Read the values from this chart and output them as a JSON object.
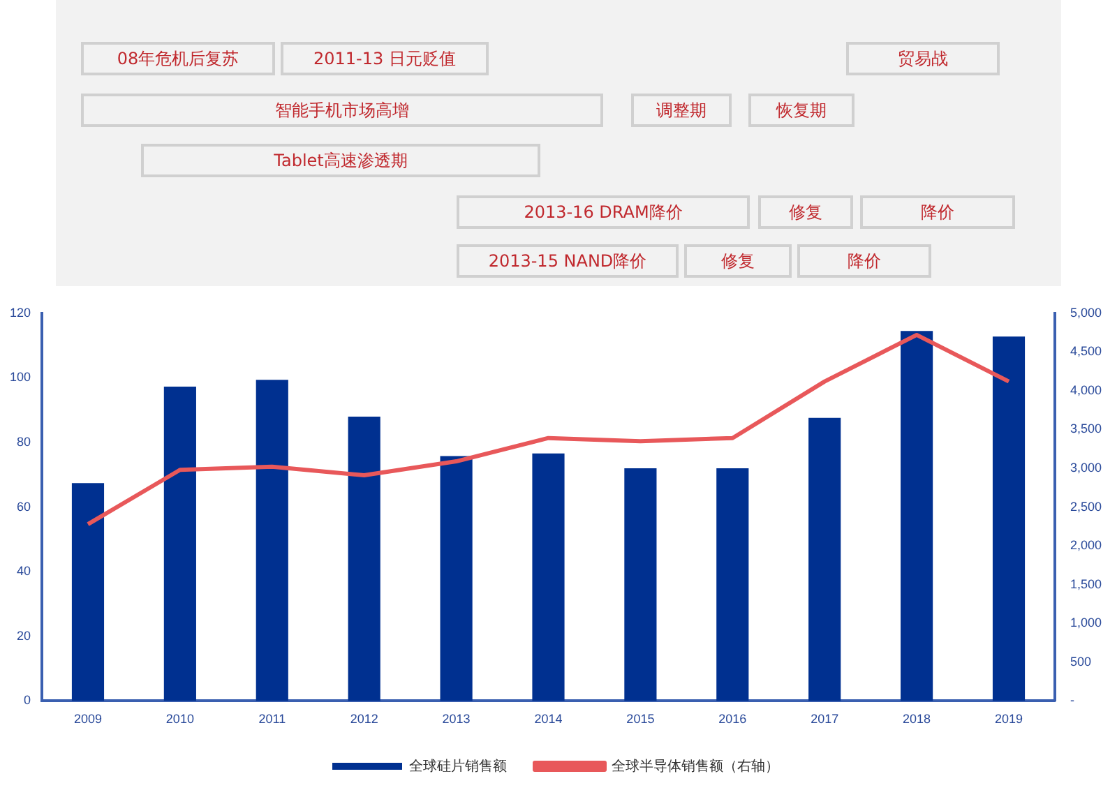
{
  "chart_data": {
    "type": "bar",
    "categories": [
      "2009",
      "2010",
      "2011",
      "2012",
      "2013",
      "2014",
      "2015",
      "2016",
      "2017",
      "2018",
      "2019"
    ],
    "series": [
      {
        "name": "全球硅片销售额",
        "color": "#003090",
        "values": [
          67.4,
          97.3,
          99.4,
          88,
          75.8,
          76.6,
          72,
          72,
          87.6,
          114.5,
          112.8
        ]
      },
      {
        "name": "全球半导体销售额（右轴）",
        "type": "line",
        "axis": "y2",
        "color": "#e8585a",
        "values": [
          2280,
          2980,
          3020,
          2910,
          3090,
          3390,
          3350,
          3390,
          4120,
          4720,
          4120
        ]
      }
    ],
    "ylim": [
      0,
      120
    ],
    "yticks": [
      0,
      20,
      40,
      60,
      80,
      100,
      120
    ],
    "y2lim": [
      0,
      5000
    ],
    "y2ticks": [
      {
        "value": 0,
        "label": "-"
      },
      500,
      {
        "value": 1000,
        "label": "1,000"
      },
      {
        "value": 1500,
        "label": "1,500"
      },
      {
        "value": 2000,
        "label": "2,000"
      },
      {
        "value": 2500,
        "label": "2,500"
      },
      {
        "value": 3000,
        "label": "3,000"
      },
      {
        "value": 3500,
        "label": "3,500"
      },
      {
        "value": 4000,
        "label": "4,000"
      },
      {
        "value": 4500,
        "label": "4,500"
      },
      {
        "value": 5000,
        "label": "5,000"
      }
    ],
    "grid": false,
    "legend": "bottom",
    "marker": "none",
    "annotations": [
      "08年危机后复苏",
      "2011-13 日元贬值",
      "贸易战",
      "智能手机市场高增",
      "调整期",
      "恢复期",
      "Tablet高速渗透期",
      "2013-16 DRAM降价",
      "修复",
      "降价",
      "2013-15 NAND降价",
      "修复",
      "降价"
    ]
  }
}
